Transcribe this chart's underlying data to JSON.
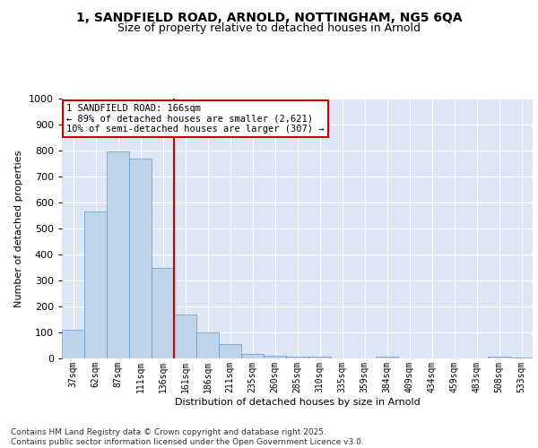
{
  "title_line1": "1, SANDFIELD ROAD, ARNOLD, NOTTINGHAM, NG5 6QA",
  "title_line2": "Size of property relative to detached houses in Arnold",
  "xlabel": "Distribution of detached houses by size in Arnold",
  "ylabel": "Number of detached properties",
  "categories": [
    "37sqm",
    "62sqm",
    "87sqm",
    "111sqm",
    "136sqm",
    "161sqm",
    "186sqm",
    "211sqm",
    "235sqm",
    "260sqm",
    "285sqm",
    "310sqm",
    "335sqm",
    "359sqm",
    "384sqm",
    "409sqm",
    "434sqm",
    "459sqm",
    "483sqm",
    "508sqm",
    "533sqm"
  ],
  "values": [
    110,
    565,
    795,
    770,
    350,
    170,
    100,
    55,
    18,
    12,
    8,
    6,
    0,
    0,
    8,
    0,
    0,
    0,
    0,
    8,
    5
  ],
  "bar_color": "#bdd4ea",
  "bar_edge_color": "#6699cc",
  "bg_color": "#dce6f5",
  "grid_color": "#ffffff",
  "vline_color": "#cc0000",
  "vline_index": 5,
  "annotation_text": "1 SANDFIELD ROAD: 166sqm\n← 89% of detached houses are smaller (2,621)\n10% of semi-detached houses are larger (307) →",
  "annotation_box_facecolor": "#ffffff",
  "annotation_box_edgecolor": "#cc0000",
  "ylim": [
    0,
    1000
  ],
  "yticks": [
    0,
    100,
    200,
    300,
    400,
    500,
    600,
    700,
    800,
    900,
    1000
  ],
  "footer_text": "Contains HM Land Registry data © Crown copyright and database right 2025.\nContains public sector information licensed under the Open Government Licence v3.0."
}
